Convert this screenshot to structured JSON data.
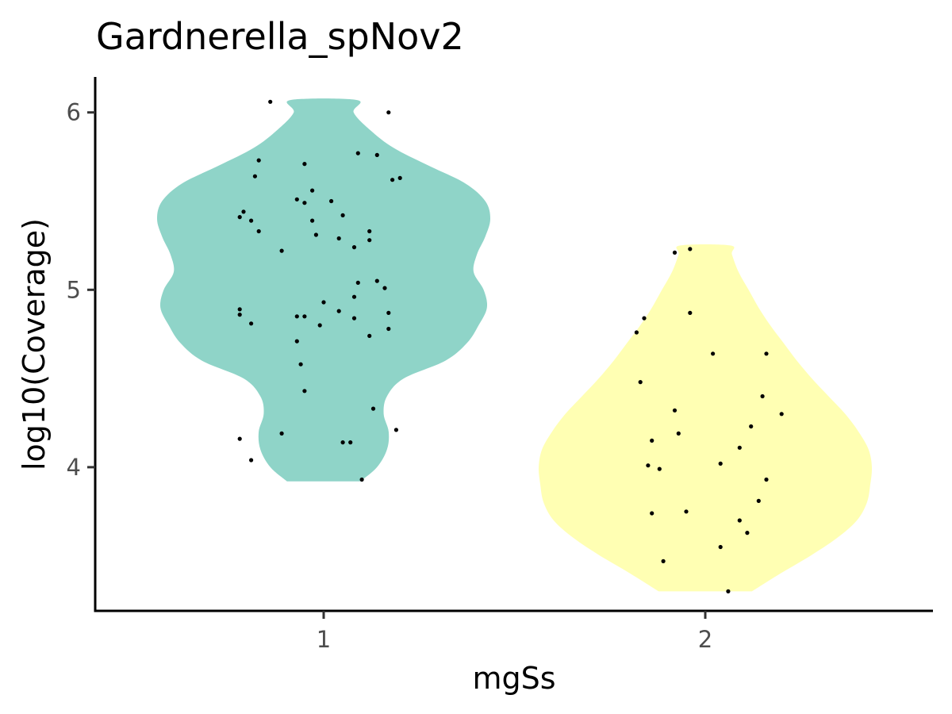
{
  "chart_data": {
    "type": "violin",
    "title": "Gardnerella_spNov2",
    "xlabel": "mgSs",
    "ylabel": "log10(Coverage)",
    "categories": [
      "1",
      "2"
    ],
    "ylim": [
      3.19,
      6.2
    ],
    "y_ticks": [
      4,
      5,
      6
    ],
    "grid": false,
    "legend": "none",
    "colors": {
      "1": "#8fd4c8",
      "2": "#ffffb3",
      "points": "#000000"
    },
    "series": [
      {
        "category": "1",
        "density": [
          [
            3.92,
            0.22
          ],
          [
            4.0,
            0.32
          ],
          [
            4.1,
            0.38
          ],
          [
            4.2,
            0.39
          ],
          [
            4.3,
            0.36
          ],
          [
            4.4,
            0.38
          ],
          [
            4.5,
            0.48
          ],
          [
            4.6,
            0.73
          ],
          [
            4.7,
            0.86
          ],
          [
            4.8,
            0.93
          ],
          [
            4.9,
            0.98
          ],
          [
            5.0,
            0.96
          ],
          [
            5.1,
            0.9
          ],
          [
            5.2,
            0.92
          ],
          [
            5.3,
            0.97
          ],
          [
            5.4,
            1.0
          ],
          [
            5.5,
            0.97
          ],
          [
            5.6,
            0.85
          ],
          [
            5.7,
            0.63
          ],
          [
            5.8,
            0.42
          ],
          [
            5.9,
            0.28
          ],
          [
            6.0,
            0.18
          ],
          [
            6.07,
            0.2
          ]
        ],
        "points": [
          [
            0.86,
            6.06
          ],
          [
            1.17,
            6.0
          ],
          [
            0.83,
            5.73
          ],
          [
            0.95,
            5.71
          ],
          [
            1.09,
            5.77
          ],
          [
            1.14,
            5.76
          ],
          [
            0.82,
            5.64
          ],
          [
            1.18,
            5.62
          ],
          [
            1.2,
            5.63
          ],
          [
            0.93,
            5.51
          ],
          [
            0.97,
            5.56
          ],
          [
            1.02,
            5.5
          ],
          [
            0.95,
            5.49
          ],
          [
            0.79,
            5.44
          ],
          [
            0.78,
            5.41
          ],
          [
            0.81,
            5.39
          ],
          [
            1.05,
            5.42
          ],
          [
            0.97,
            5.39
          ],
          [
            0.83,
            5.33
          ],
          [
            0.98,
            5.31
          ],
          [
            1.04,
            5.29
          ],
          [
            1.12,
            5.33
          ],
          [
            1.12,
            5.28
          ],
          [
            0.89,
            5.22
          ],
          [
            1.08,
            5.24
          ],
          [
            1.09,
            5.04
          ],
          [
            1.14,
            5.05
          ],
          [
            1.16,
            5.01
          ],
          [
            1.08,
            4.96
          ],
          [
            1.0,
            4.93
          ],
          [
            0.78,
            4.89
          ],
          [
            0.78,
            4.86
          ],
          [
            0.81,
            4.81
          ],
          [
            1.04,
            4.88
          ],
          [
            1.17,
            4.87
          ],
          [
            0.93,
            4.85
          ],
          [
            0.95,
            4.85
          ],
          [
            1.08,
            4.84
          ],
          [
            0.99,
            4.8
          ],
          [
            1.17,
            4.78
          ],
          [
            1.12,
            4.74
          ],
          [
            0.93,
            4.71
          ],
          [
            0.94,
            4.58
          ],
          [
            0.95,
            4.43
          ],
          [
            1.13,
            4.33
          ],
          [
            1.19,
            4.21
          ],
          [
            0.89,
            4.19
          ],
          [
            0.78,
            4.16
          ],
          [
            1.05,
            4.14
          ],
          [
            1.07,
            4.14
          ],
          [
            0.81,
            4.04
          ],
          [
            1.1,
            3.93
          ]
        ]
      },
      {
        "category": "2",
        "density": [
          [
            3.3,
            0.28
          ],
          [
            3.4,
            0.45
          ],
          [
            3.5,
            0.63
          ],
          [
            3.6,
            0.79
          ],
          [
            3.7,
            0.91
          ],
          [
            3.8,
            0.97
          ],
          [
            3.9,
            0.99
          ],
          [
            4.0,
            1.0
          ],
          [
            4.1,
            0.98
          ],
          [
            4.2,
            0.92
          ],
          [
            4.3,
            0.84
          ],
          [
            4.4,
            0.74
          ],
          [
            4.5,
            0.64
          ],
          [
            4.6,
            0.55
          ],
          [
            4.7,
            0.47
          ],
          [
            4.8,
            0.39
          ],
          [
            4.9,
            0.32
          ],
          [
            5.0,
            0.26
          ],
          [
            5.1,
            0.2
          ],
          [
            5.2,
            0.16
          ],
          [
            5.25,
            0.15
          ]
        ],
        "points": [
          [
            1.92,
            5.21
          ],
          [
            1.96,
            5.23
          ],
          [
            1.96,
            4.87
          ],
          [
            1.84,
            4.84
          ],
          [
            1.82,
            4.76
          ],
          [
            2.02,
            4.64
          ],
          [
            2.16,
            4.64
          ],
          [
            1.83,
            4.48
          ],
          [
            2.15,
            4.4
          ],
          [
            1.92,
            4.32
          ],
          [
            2.2,
            4.3
          ],
          [
            2.12,
            4.23
          ],
          [
            1.93,
            4.19
          ],
          [
            1.86,
            4.15
          ],
          [
            2.09,
            4.11
          ],
          [
            2.04,
            4.02
          ],
          [
            1.85,
            4.01
          ],
          [
            1.88,
            3.99
          ],
          [
            2.16,
            3.93
          ],
          [
            2.14,
            3.81
          ],
          [
            1.95,
            3.75
          ],
          [
            1.86,
            3.74
          ],
          [
            2.09,
            3.7
          ],
          [
            2.11,
            3.63
          ],
          [
            2.04,
            3.55
          ],
          [
            1.89,
            3.47
          ],
          [
            2.06,
            3.3
          ]
        ]
      }
    ]
  }
}
